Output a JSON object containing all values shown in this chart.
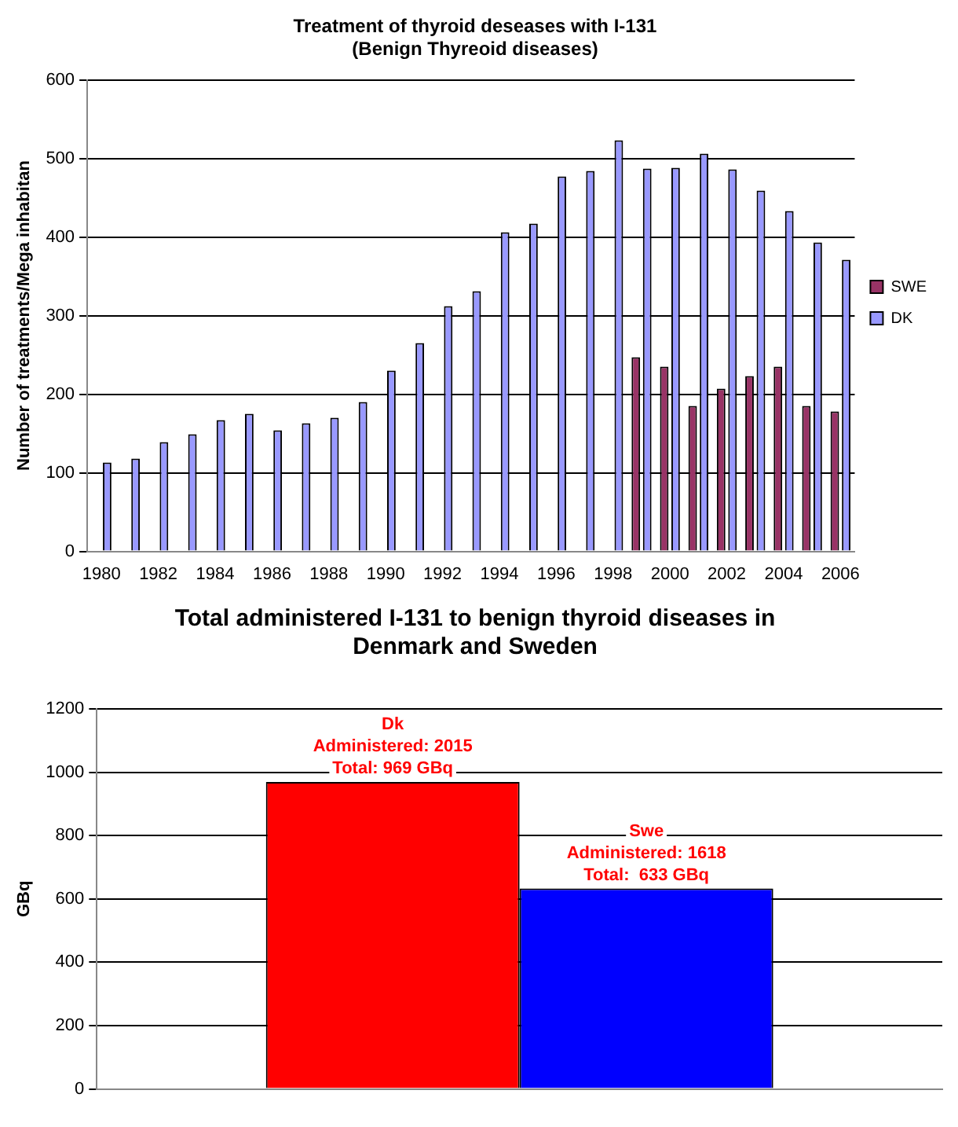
{
  "chart_data": [
    {
      "type": "bar",
      "title": "Treatment of thyroid deseases with I-131\n(Benign Thyreoid diseases)",
      "ylabel": "Number of treatments/Mega inhabitan",
      "categories": [
        "1980",
        null,
        "1982",
        null,
        "1984",
        null,
        "1986",
        null,
        "1988",
        null,
        "1990",
        null,
        "1992",
        null,
        "1994",
        null,
        "1996",
        null,
        "1998",
        null,
        "2000",
        null,
        "2002",
        null,
        "2004",
        null,
        "2006"
      ],
      "series": [
        {
          "name": "SWE",
          "color": "#993366",
          "values": [
            null,
            null,
            null,
            null,
            null,
            null,
            null,
            null,
            null,
            null,
            null,
            null,
            null,
            null,
            null,
            null,
            null,
            null,
            null,
            247,
            235,
            185,
            207,
            223,
            235,
            185,
            178
          ]
        },
        {
          "name": "DK",
          "color": "#9999ff",
          "values": [
            113,
            118,
            139,
            149,
            167,
            175,
            154,
            163,
            170,
            190,
            230,
            265,
            312,
            331,
            406,
            417,
            477,
            484,
            523,
            487,
            488,
            506,
            486,
            459,
            433,
            393,
            371
          ]
        }
      ],
      "ylim": [
        0,
        600
      ],
      "yticks": [
        0,
        100,
        200,
        300,
        400,
        500,
        600
      ],
      "grid": "y",
      "legend": "right"
    },
    {
      "type": "bar",
      "title": "Total administered I-131 to benign thyroid diseases in\nDenmark and Sweden",
      "ylabel": "GBq",
      "categories": [
        null
      ],
      "series": [
        {
          "name": "Dk",
          "color": "#ff0000",
          "values": [
            969
          ],
          "value_labels": [
            "Administered: 2015\nTotal: 969 GBq"
          ]
        },
        {
          "name": "Swe",
          "color": "#0000ff",
          "values": [
            633
          ],
          "value_labels": [
            "Administered: 1618\nTotal:  633 GBq"
          ]
        }
      ],
      "ylim": [
        0,
        1200
      ],
      "yticks": [
        0,
        200,
        400,
        600,
        800,
        1000,
        1200
      ],
      "grid": "y",
      "legend": false
    }
  ]
}
